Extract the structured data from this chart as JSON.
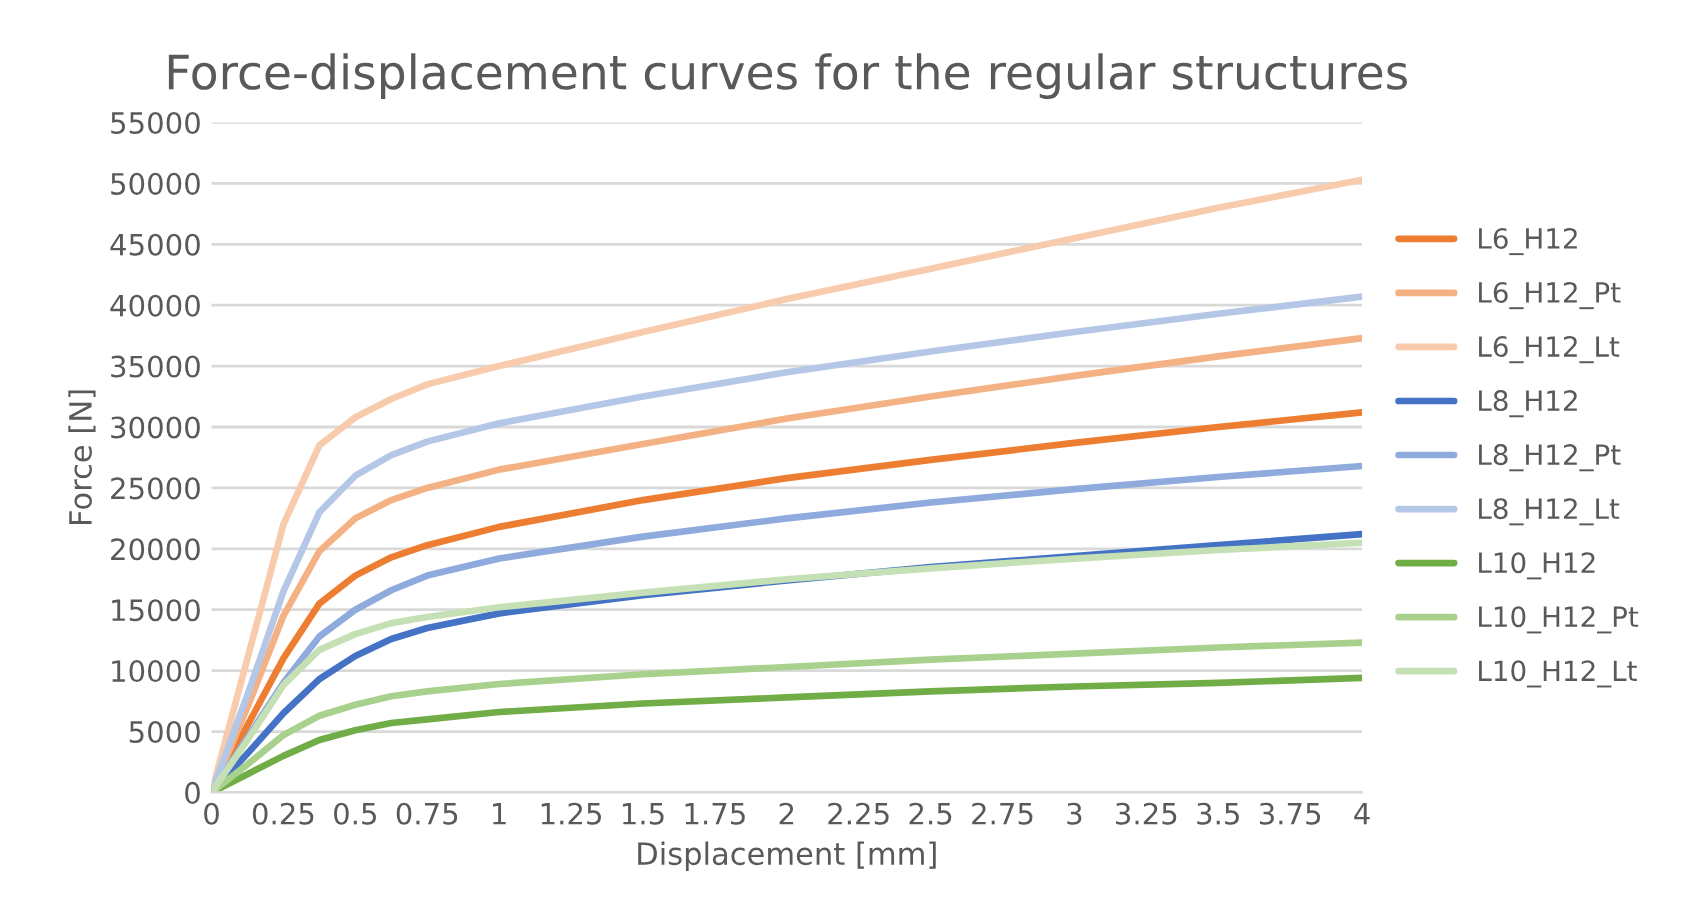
{
  "chart_data": {
    "type": "line",
    "title": "Force-displacement curves for the regular structures",
    "xlabel": "Displacement [mm]",
    "ylabel": "Force [N]",
    "x": [
      0,
      0.125,
      0.25,
      0.375,
      0.5,
      0.625,
      0.75,
      1,
      1.5,
      2,
      2.5,
      3,
      3.5,
      4
    ],
    "series": [
      {
        "name": "L6_H12",
        "color": "#ed7d31",
        "values": [
          0,
          5500,
          11000,
          15500,
          17800,
          19300,
          20300,
          21800,
          24000,
          25800,
          27300,
          28700,
          30000,
          31200
        ]
      },
      {
        "name": "L6_H12_Pt",
        "color": "#f4b183",
        "values": [
          0,
          7000,
          14500,
          19800,
          22500,
          24000,
          25000,
          26500,
          28600,
          30700,
          32500,
          34200,
          35800,
          37300
        ]
      },
      {
        "name": "L6_H12_Lt",
        "color": "#f8cbad",
        "values": [
          0,
          11000,
          22000,
          28500,
          30800,
          32300,
          33500,
          35000,
          37800,
          40500,
          43000,
          45500,
          48000,
          50300
        ]
      },
      {
        "name": "L8_H12",
        "color": "#4472c4",
        "values": [
          0,
          3200,
          6500,
          9300,
          11200,
          12600,
          13500,
          14700,
          16200,
          17400,
          18500,
          19400,
          20300,
          21200
        ]
      },
      {
        "name": "L8_H12_Pt",
        "color": "#8faadc",
        "values": [
          0,
          4500,
          9000,
          12800,
          15000,
          16600,
          17800,
          19200,
          21000,
          22500,
          23800,
          24900,
          25900,
          26800
        ]
      },
      {
        "name": "L8_H12_Lt",
        "color": "#b4c7e7",
        "values": [
          0,
          8000,
          16500,
          23000,
          26000,
          27700,
          28800,
          30300,
          32500,
          34500,
          36200,
          37800,
          39300,
          40700
        ]
      },
      {
        "name": "L10_H12",
        "color": "#70ad47",
        "values": [
          0,
          1500,
          3000,
          4300,
          5100,
          5700,
          6000,
          6600,
          7300,
          7800,
          8300,
          8700,
          9000,
          9400
        ]
      },
      {
        "name": "L10_H12_Pt",
        "color": "#a9d18e",
        "values": [
          0,
          2300,
          4700,
          6300,
          7200,
          7900,
          8300,
          8900,
          9700,
          10300,
          10900,
          11400,
          11900,
          12300
        ]
      },
      {
        "name": "L10_H12_Lt",
        "color": "#c5e0b4",
        "values": [
          0,
          4300,
          8800,
          11700,
          13000,
          13900,
          14400,
          15200,
          16400,
          17500,
          18400,
          19200,
          19900,
          20500
        ]
      }
    ],
    "xlim": [
      0,
      4
    ],
    "xticks": [
      0,
      0.25,
      0.5,
      0.75,
      1,
      1.25,
      1.5,
      1.75,
      2,
      2.25,
      2.5,
      2.75,
      3,
      3.25,
      3.5,
      3.75,
      4
    ],
    "ylim": [
      0,
      55000
    ],
    "yticks": [
      0,
      5000,
      10000,
      15000,
      20000,
      25000,
      30000,
      35000,
      40000,
      45000,
      50000,
      55000
    ],
    "grid": "y",
    "legend": "right",
    "marker": "none",
    "line_style": "solid"
  }
}
